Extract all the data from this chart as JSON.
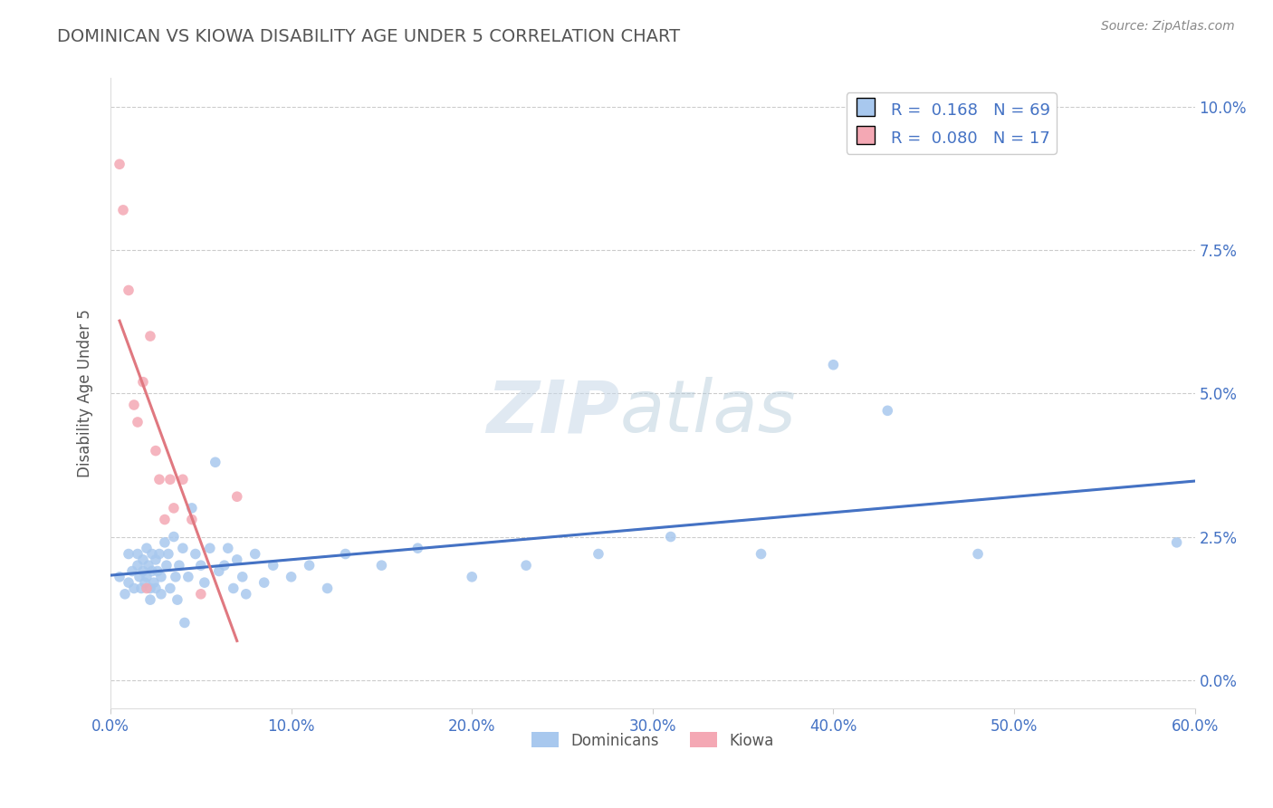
{
  "title": "DOMINICAN VS KIOWA DISABILITY AGE UNDER 5 CORRELATION CHART",
  "source_text": "Source: ZipAtlas.com",
  "ylabel": "Disability Age Under 5",
  "xlim": [
    0.0,
    0.6
  ],
  "ylim": [
    -0.005,
    0.105
  ],
  "xticks": [
    0.0,
    0.1,
    0.2,
    0.3,
    0.4,
    0.5,
    0.6
  ],
  "xticklabels": [
    "0.0%",
    "10.0%",
    "20.0%",
    "30.0%",
    "40.0%",
    "50.0%",
    "60.0%"
  ],
  "yticks": [
    0.0,
    0.025,
    0.05,
    0.075,
    0.1
  ],
  "yticklabels": [
    "0.0%",
    "2.5%",
    "5.0%",
    "7.5%",
    "10.0%"
  ],
  "dominican_R": 0.168,
  "dominican_N": 69,
  "kiowa_R": 0.08,
  "kiowa_N": 17,
  "dominican_color": "#A8C8EE",
  "kiowa_color": "#F4A8B4",
  "dominican_line_color": "#4472C4",
  "kiowa_line_color": "#E07880",
  "watermark_zip": "ZIP",
  "watermark_atlas": "atlas",
  "legend_label_1": "Dominicans",
  "legend_label_2": "Kiowa",
  "bg_color": "#FFFFFF",
  "grid_color": "#CCCCCC",
  "tick_color": "#4472C4",
  "title_color": "#555555",
  "source_color": "#888888",
  "dominican_x": [
    0.005,
    0.008,
    0.01,
    0.01,
    0.012,
    0.013,
    0.015,
    0.015,
    0.016,
    0.017,
    0.018,
    0.018,
    0.019,
    0.02,
    0.02,
    0.021,
    0.022,
    0.022,
    0.023,
    0.023,
    0.024,
    0.025,
    0.025,
    0.026,
    0.027,
    0.028,
    0.028,
    0.03,
    0.031,
    0.032,
    0.033,
    0.035,
    0.036,
    0.037,
    0.038,
    0.04,
    0.041,
    0.043,
    0.045,
    0.047,
    0.05,
    0.052,
    0.055,
    0.058,
    0.06,
    0.063,
    0.065,
    0.068,
    0.07,
    0.073,
    0.075,
    0.08,
    0.085,
    0.09,
    0.1,
    0.11,
    0.12,
    0.13,
    0.15,
    0.17,
    0.2,
    0.23,
    0.27,
    0.31,
    0.36,
    0.4,
    0.43,
    0.48,
    0.59
  ],
  "dominican_y": [
    0.018,
    0.015,
    0.022,
    0.017,
    0.019,
    0.016,
    0.022,
    0.02,
    0.018,
    0.016,
    0.021,
    0.019,
    0.017,
    0.023,
    0.018,
    0.02,
    0.016,
    0.014,
    0.022,
    0.019,
    0.017,
    0.021,
    0.016,
    0.019,
    0.022,
    0.018,
    0.015,
    0.024,
    0.02,
    0.022,
    0.016,
    0.025,
    0.018,
    0.014,
    0.02,
    0.023,
    0.01,
    0.018,
    0.03,
    0.022,
    0.02,
    0.017,
    0.023,
    0.038,
    0.019,
    0.02,
    0.023,
    0.016,
    0.021,
    0.018,
    0.015,
    0.022,
    0.017,
    0.02,
    0.018,
    0.02,
    0.016,
    0.022,
    0.02,
    0.023,
    0.018,
    0.02,
    0.022,
    0.025,
    0.022,
    0.055,
    0.047,
    0.022,
    0.024
  ],
  "kiowa_x": [
    0.005,
    0.007,
    0.01,
    0.013,
    0.015,
    0.018,
    0.02,
    0.022,
    0.025,
    0.027,
    0.03,
    0.033,
    0.035,
    0.04,
    0.045,
    0.05,
    0.07
  ],
  "kiowa_y": [
    0.09,
    0.082,
    0.068,
    0.048,
    0.045,
    0.052,
    0.016,
    0.06,
    0.04,
    0.035,
    0.028,
    0.035,
    0.03,
    0.035,
    0.028,
    0.015,
    0.032
  ]
}
